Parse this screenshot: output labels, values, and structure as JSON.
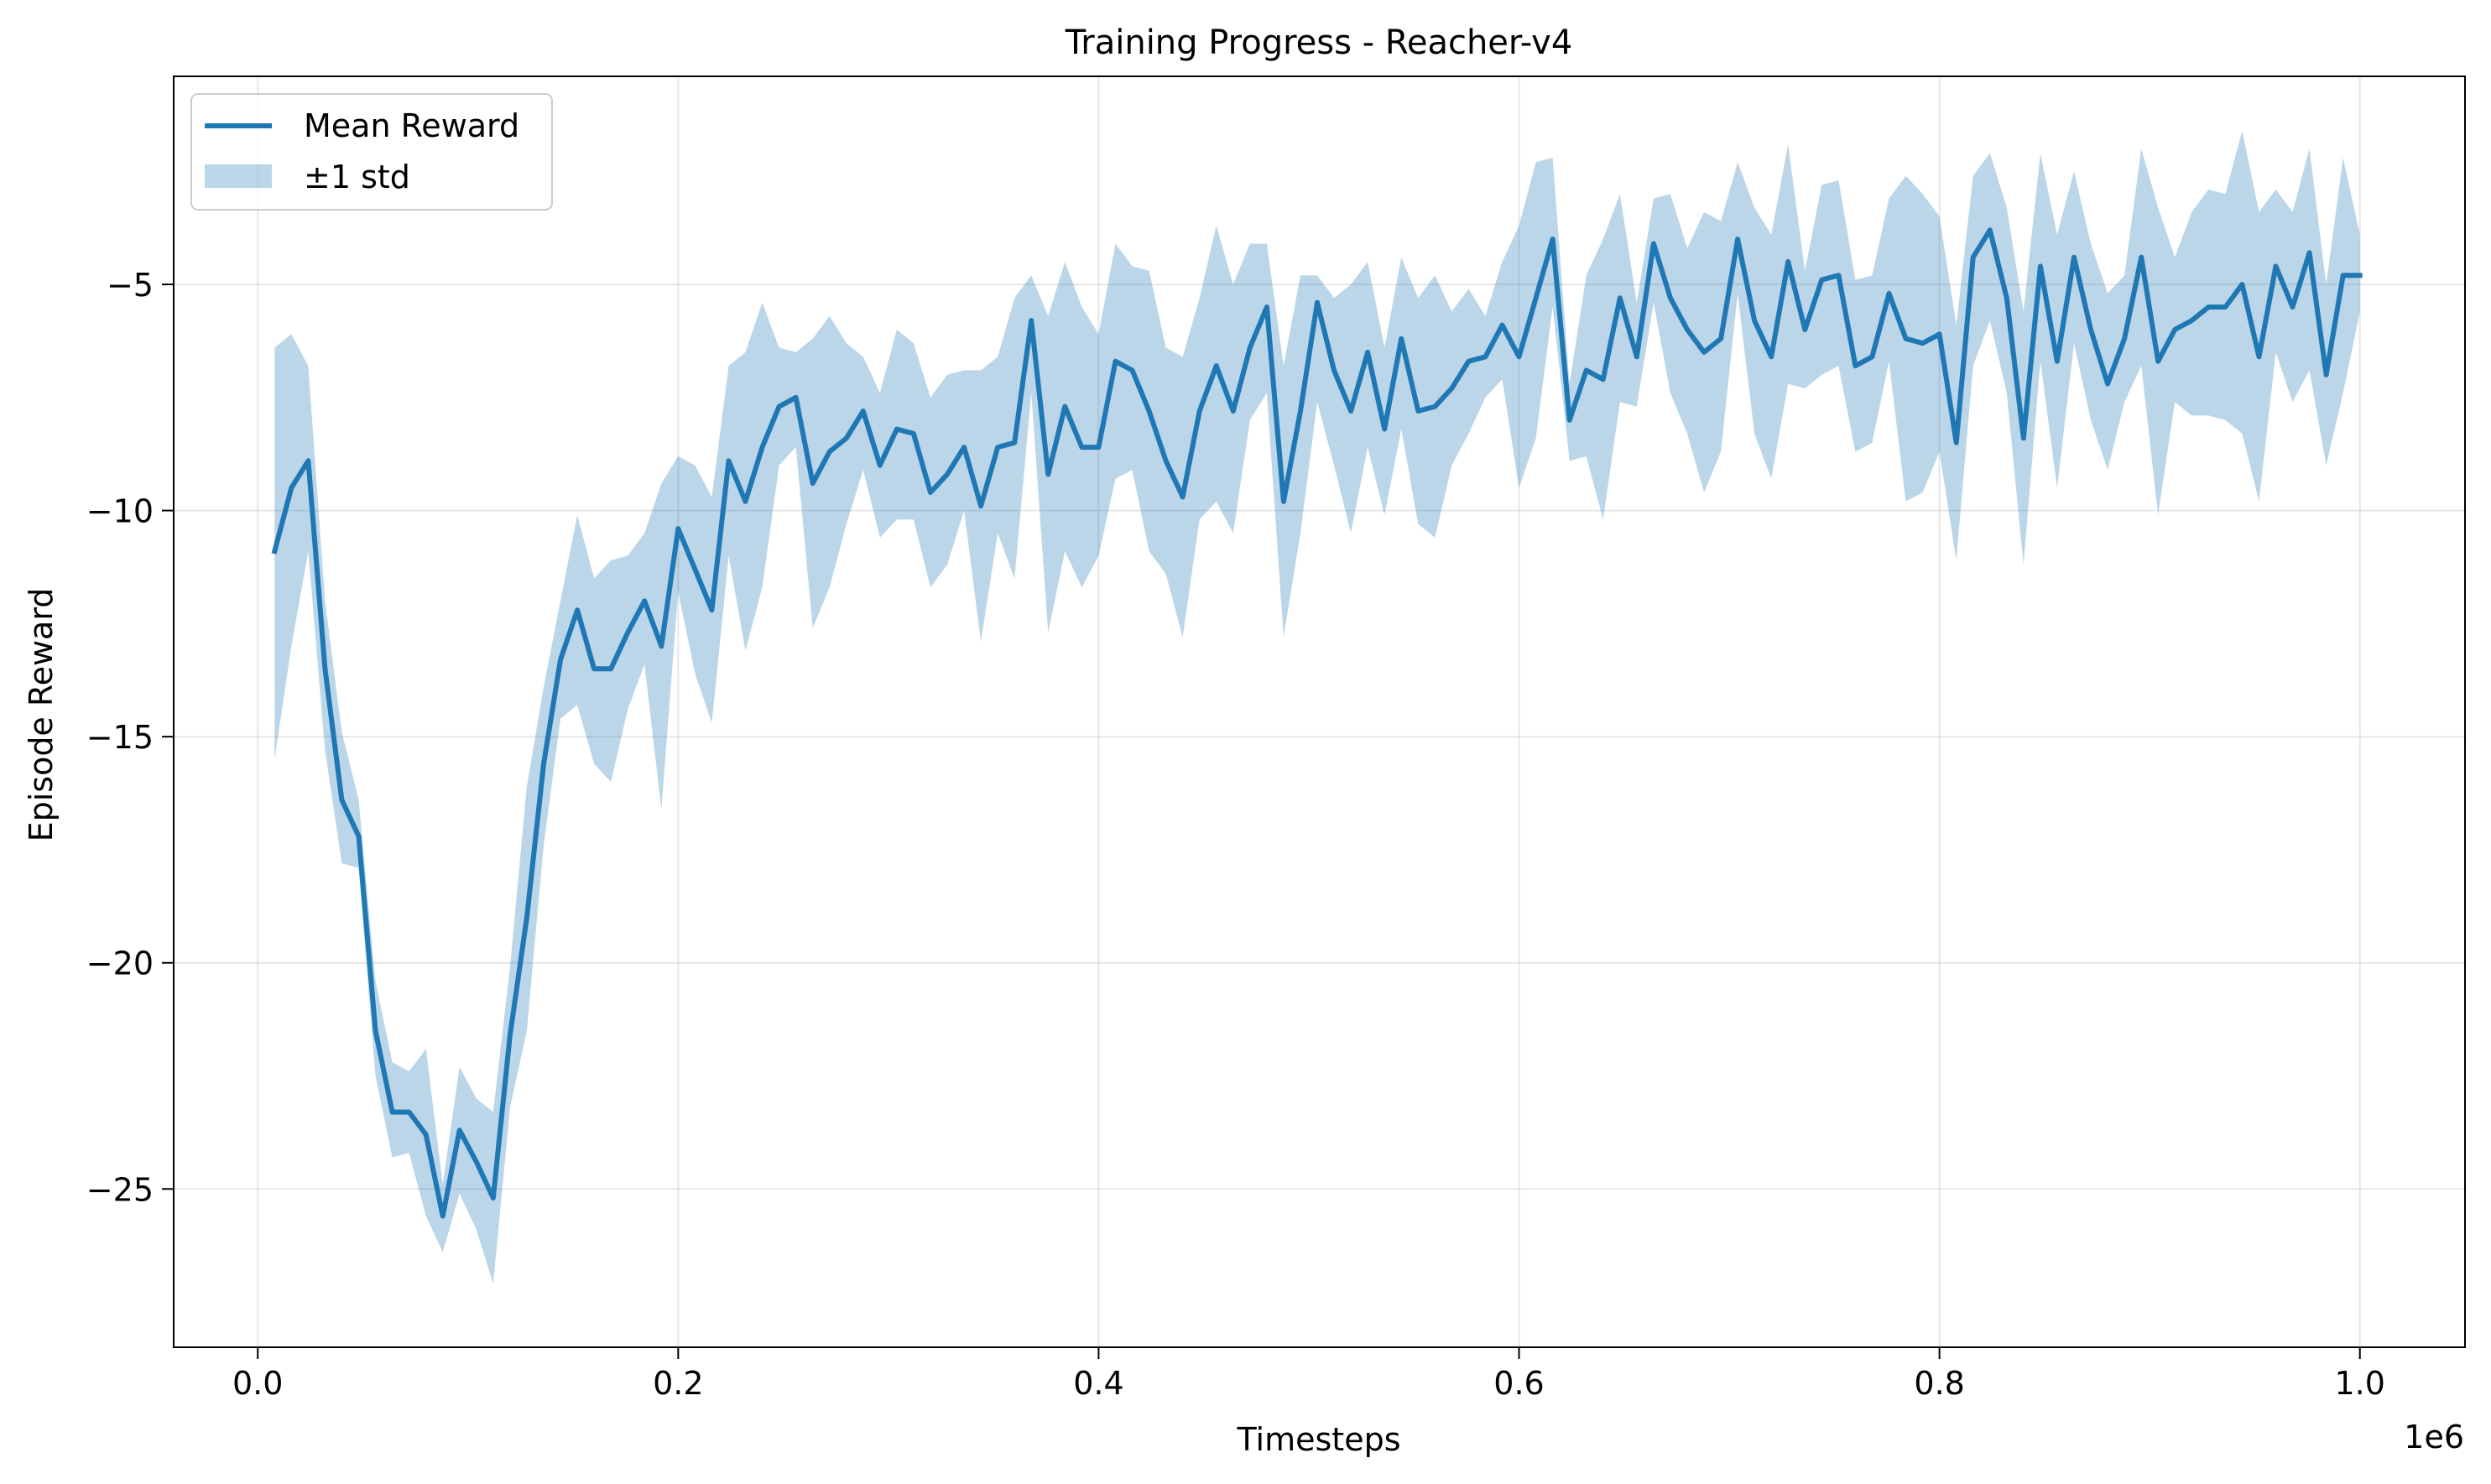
{
  "chart_data": {
    "type": "line",
    "title": "Training Progress - Reacher-v4",
    "xlabel": "Timesteps",
    "ylabel": "Episode Reward",
    "x_offset_label": "1e6",
    "xlim": [
      -0.04,
      1.05
    ],
    "ylim": [
      -28.5,
      -0.4
    ],
    "xticks": [
      0.0,
      0.2,
      0.4,
      0.6,
      0.8,
      1.0
    ],
    "xtick_labels": [
      "0.0",
      "0.2",
      "0.4",
      "0.6",
      "0.8",
      "1.0"
    ],
    "yticks": [
      -25,
      -20,
      -15,
      -10,
      -5
    ],
    "ytick_labels": [
      "−25",
      "−20",
      "−15",
      "−10",
      "−5"
    ],
    "grid": true,
    "legend": {
      "placement": "top-left",
      "entries": [
        "Mean Reward",
        "±1 std"
      ]
    },
    "colors": {
      "line": "#1f77b4",
      "band": "#1f77b4"
    },
    "series": [
      {
        "name": "Mean Reward",
        "x": [
          0.008,
          0.016,
          0.024,
          0.032,
          0.04,
          0.048,
          0.056,
          0.064,
          0.072,
          0.08,
          0.088,
          0.096,
          0.104,
          0.112,
          0.12,
          0.128,
          0.136,
          0.144,
          0.152,
          0.16,
          0.168,
          0.176,
          0.184,
          0.192,
          0.2,
          0.208,
          0.216,
          0.224,
          0.232,
          0.24,
          0.248,
          0.256,
          0.264,
          0.272,
          0.28,
          0.288,
          0.296,
          0.304,
          0.312,
          0.32,
          0.328,
          0.336,
          0.344,
          0.352,
          0.36,
          0.368,
          0.376,
          0.384,
          0.392,
          0.4,
          0.408,
          0.416,
          0.424,
          0.432,
          0.44,
          0.448,
          0.456,
          0.464,
          0.472,
          0.48,
          0.488,
          0.496,
          0.504,
          0.512,
          0.52,
          0.528,
          0.536,
          0.544,
          0.552,
          0.56,
          0.568,
          0.576,
          0.584,
          0.592,
          0.6,
          0.608,
          0.616,
          0.624,
          0.632,
          0.64,
          0.648,
          0.656,
          0.664,
          0.672,
          0.68,
          0.688,
          0.696,
          0.704,
          0.712,
          0.72,
          0.728,
          0.736,
          0.744,
          0.752,
          0.76,
          0.768,
          0.776,
          0.784,
          0.792,
          0.8,
          0.808,
          0.816,
          0.824,
          0.832,
          0.84,
          0.848,
          0.856,
          0.864,
          0.872,
          0.88,
          0.888,
          0.896,
          0.904,
          0.912,
          0.92,
          0.928,
          0.936,
          0.944,
          0.952,
          0.96,
          0.968,
          0.976,
          0.984,
          0.992,
          1.0
        ],
        "values": [
          -10.9,
          -9.5,
          -8.9,
          -13.5,
          -16.4,
          -17.2,
          -21.5,
          -23.3,
          -23.3,
          -23.8,
          -25.6,
          -23.7,
          -24.4,
          -25.2,
          -21.6,
          -19.0,
          -15.6,
          -13.3,
          -12.2,
          -13.5,
          -13.5,
          -12.7,
          -12.0,
          -13.0,
          -10.4,
          -11.3,
          -12.2,
          -8.9,
          -9.8,
          -8.6,
          -7.7,
          -7.5,
          -9.4,
          -8.7,
          -8.4,
          -7.8,
          -9.0,
          -8.2,
          -8.3,
          -9.6,
          -9.2,
          -8.6,
          -9.9,
          -8.6,
          -8.5,
          -5.8,
          -9.2,
          -7.7,
          -8.6,
          -8.6,
          -6.7,
          -6.9,
          -7.8,
          -8.9,
          -9.7,
          -7.8,
          -6.8,
          -7.8,
          -6.4,
          -5.5,
          -9.8,
          -7.8,
          -5.4,
          -6.9,
          -7.8,
          -6.5,
          -8.2,
          -6.2,
          -7.8,
          -7.7,
          -7.3,
          -6.7,
          -6.6,
          -5.9,
          -6.6,
          -5.3,
          -4.0,
          -8.0,
          -6.9,
          -7.1,
          -5.3,
          -6.6,
          -4.1,
          -5.3,
          -6.0,
          -6.5,
          -6.2,
          -4.0,
          -5.8,
          -6.6,
          -4.5,
          -6.0,
          -4.9,
          -4.8,
          -6.8,
          -6.6,
          -5.2,
          -6.2,
          -6.3,
          -6.1,
          -8.5,
          -4.4,
          -3.8,
          -5.3,
          -8.4,
          -4.6,
          -6.7,
          -4.4,
          -6.0,
          -7.2,
          -6.2,
          -4.4,
          -6.7,
          -6.0,
          -5.8,
          -5.5,
          -5.5,
          -5.0,
          -6.6,
          -4.6,
          -5.5,
          -4.3,
          -7.0,
          -4.8,
          -4.8
        ],
        "lower": [
          -15.5,
          -13.0,
          -10.9,
          -15.3,
          -17.8,
          -17.9,
          -22.5,
          -24.3,
          -24.2,
          -25.6,
          -26.4,
          -25.1,
          -25.9,
          -27.1,
          -23.2,
          -21.5,
          -17.4,
          -14.6,
          -14.3,
          -15.6,
          -16.0,
          -14.4,
          -13.4,
          -16.6,
          -11.8,
          -13.6,
          -14.7,
          -11.0,
          -13.1,
          -11.7,
          -9.0,
          -8.6,
          -12.6,
          -11.7,
          -10.3,
          -9.1,
          -10.6,
          -10.2,
          -10.2,
          -11.7,
          -11.2,
          -10.0,
          -12.9,
          -10.5,
          -11.5,
          -7.4,
          -12.7,
          -10.9,
          -11.7,
          -11.0,
          -9.3,
          -9.1,
          -10.9,
          -11.4,
          -12.8,
          -10.2,
          -9.8,
          -10.5,
          -8.0,
          -7.4,
          -12.8,
          -10.5,
          -7.6,
          -9.0,
          -10.5,
          -8.6,
          -10.1,
          -8.2,
          -10.3,
          -10.6,
          -9.0,
          -8.3,
          -7.5,
          -7.1,
          -9.5,
          -8.4,
          -5.5,
          -8.9,
          -8.8,
          -10.2,
          -7.6,
          -7.7,
          -5.4,
          -7.4,
          -8.3,
          -9.6,
          -8.7,
          -5.2,
          -8.3,
          -9.3,
          -7.2,
          -7.3,
          -7.0,
          -6.8,
          -8.7,
          -8.5,
          -6.7,
          -9.8,
          -9.6,
          -8.7,
          -11.1,
          -6.8,
          -5.8,
          -7.4,
          -11.2,
          -6.7,
          -9.5,
          -6.3,
          -8.0,
          -9.1,
          -7.6,
          -6.8,
          -10.1,
          -7.6,
          -7.9,
          -7.9,
          -8.0,
          -8.3,
          -9.8,
          -6.5,
          -7.6,
          -6.9,
          -9.0,
          -7.4,
          -5.6
        ],
        "upper": [
          -6.4,
          -6.1,
          -6.8,
          -12.0,
          -14.9,
          -16.4,
          -20.4,
          -22.2,
          -22.4,
          -21.9,
          -24.9,
          -22.3,
          -23.0,
          -23.3,
          -20.1,
          -16.1,
          -13.9,
          -12.0,
          -10.1,
          -11.5,
          -11.1,
          -11.0,
          -10.5,
          -9.4,
          -8.8,
          -9.0,
          -9.7,
          -6.8,
          -6.5,
          -5.4,
          -6.4,
          -6.5,
          -6.2,
          -5.7,
          -6.3,
          -6.6,
          -7.4,
          -6.0,
          -6.3,
          -7.5,
          -7.0,
          -6.9,
          -6.9,
          -6.6,
          -5.3,
          -4.8,
          -5.7,
          -4.5,
          -5.5,
          -6.1,
          -4.1,
          -4.6,
          -4.7,
          -6.4,
          -6.6,
          -5.3,
          -3.7,
          -5.0,
          -4.1,
          -4.1,
          -6.8,
          -4.8,
          -4.8,
          -5.3,
          -5.0,
          -4.5,
          -6.4,
          -4.4,
          -5.3,
          -4.8,
          -5.6,
          -5.1,
          -5.7,
          -4.5,
          -3.7,
          -2.3,
          -2.2,
          -7.2,
          -4.8,
          -4.0,
          -3.0,
          -5.4,
          -3.1,
          -3.0,
          -4.2,
          -3.4,
          -3.6,
          -2.3,
          -3.3,
          -3.9,
          -1.9,
          -4.7,
          -2.8,
          -2.7,
          -4.9,
          -4.8,
          -3.1,
          -2.6,
          -3.0,
          -3.5,
          -5.9,
          -2.6,
          -2.1,
          -3.3,
          -5.6,
          -2.1,
          -3.9,
          -2.5,
          -4.1,
          -5.2,
          -4.8,
          -2.0,
          -3.3,
          -4.4,
          -3.4,
          -2.9,
          -3.0,
          -1.6,
          -3.4,
          -2.9,
          -3.4,
          -2.0,
          -5.0,
          -2.2,
          -3.9
        ]
      }
    ]
  }
}
